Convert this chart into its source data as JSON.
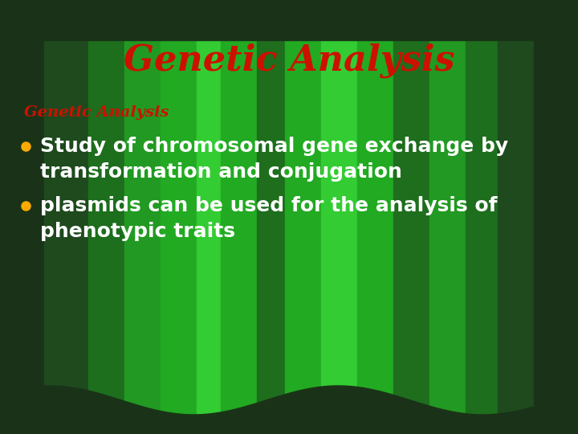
{
  "title": "Genetic Analysis",
  "subtitle": "Genetic Analysis",
  "bullet1_line1": "Study of chromosomal gene exchange by",
  "bullet1_line2": "transformation and conjugation",
  "bullet2_line1": "plasmids can be used for the analysis of",
  "bullet2_line2": "phenotypic traits",
  "title_color": "#cc1100",
  "subtitle_color": "#cc1100",
  "bullet_text_color": "#ffffff",
  "bullet_dot_color": "#ffaa00",
  "bg_dark": "#1a3318",
  "title_fontsize": 32,
  "subtitle_fontsize": 14,
  "bullet_fontsize": 18,
  "fig_width": 7.2,
  "fig_height": 5.4,
  "bands": [
    [
      0,
      55,
      "#1a3318"
    ],
    [
      55,
      110,
      "#1e4a1e"
    ],
    [
      110,
      155,
      "#1d6e1d"
    ],
    [
      155,
      200,
      "#229922"
    ],
    [
      200,
      245,
      "#22aa22"
    ],
    [
      245,
      275,
      "#33cc33"
    ],
    [
      275,
      320,
      "#22aa22"
    ],
    [
      320,
      355,
      "#1e6e1e"
    ],
    [
      355,
      400,
      "#22aa22"
    ],
    [
      400,
      445,
      "#33cc33"
    ],
    [
      445,
      490,
      "#22aa22"
    ],
    [
      490,
      535,
      "#1e6e1e"
    ],
    [
      535,
      580,
      "#229922"
    ],
    [
      580,
      620,
      "#1d6e1d"
    ],
    [
      620,
      665,
      "#1e4a1e"
    ],
    [
      665,
      720,
      "#1a3318"
    ]
  ]
}
